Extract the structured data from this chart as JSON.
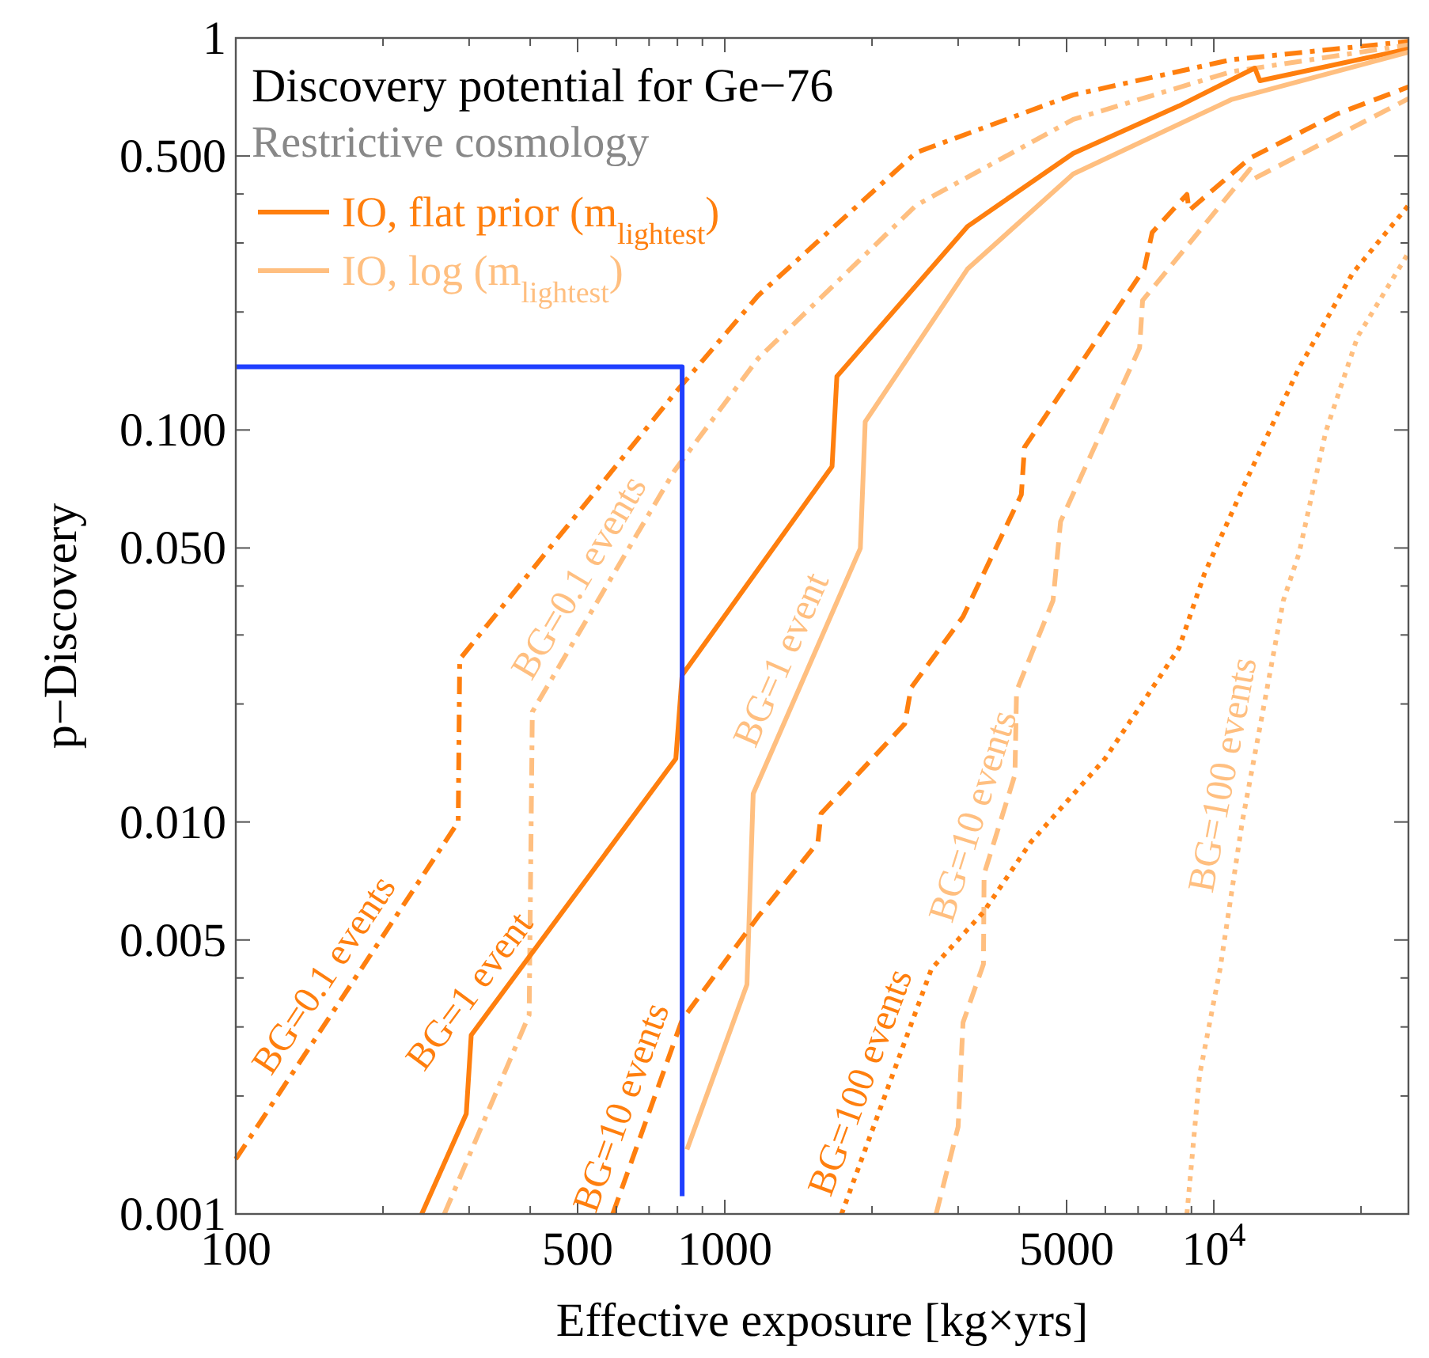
{
  "chart_data": {
    "type": "line",
    "title": "Discovery potential for Ge−76",
    "subtitle": "Restrictive cosmology",
    "xlabel": "Effective exposure [kg×yrs]",
    "ylabel": "p−Discovery",
    "log": "xy",
    "legend": "top left",
    "xlim": [
      100,
      25000
    ],
    "ylim": [
      0.001,
      1
    ],
    "xticks": [
      100,
      {
        "value": 200,
        "label": null
      },
      {
        "value": 300,
        "label": null
      },
      {
        "value": 400,
        "label": null
      },
      500,
      {
        "value": 600,
        "label": null
      },
      {
        "value": 700,
        "label": null
      },
      {
        "value": 800,
        "label": null
      },
      {
        "value": 900,
        "label": null
      },
      1000,
      {
        "value": 2000,
        "label": null
      },
      {
        "value": 3000,
        "label": null
      },
      {
        "value": 4000,
        "label": null
      },
      5000,
      {
        "value": 6000,
        "label": null
      },
      {
        "value": 7000,
        "label": null
      },
      {
        "value": 8000,
        "label": null
      },
      {
        "value": 9000,
        "label": null
      },
      {
        "value": 10000,
        "label": "10$^{4}$"
      },
      {
        "value": 20000,
        "label": null
      }
    ],
    "yticks": [
      {
        "value": 0.001,
        "label": "0.001"
      },
      {
        "value": 0.002,
        "label": null
      },
      {
        "value": 0.003,
        "label": null
      },
      {
        "value": 0.004,
        "label": null
      },
      {
        "value": 0.005,
        "label": "0.005"
      },
      {
        "value": 0.01,
        "label": "0.010"
      },
      {
        "value": 0.02,
        "label": null
      },
      {
        "value": 0.03,
        "label": null
      },
      {
        "value": 0.04,
        "label": null
      },
      {
        "value": 0.05,
        "label": "0.050"
      },
      {
        "value": 0.1,
        "label": "0.100"
      },
      {
        "value": 0.2,
        "label": null
      },
      {
        "value": 0.3,
        "label": null
      },
      {
        "value": 0.4,
        "label": null
      },
      {
        "value": 0.5,
        "label": "0.500"
      },
      {
        "value": 1,
        "label": "1"
      }
    ],
    "series": [
      {
        "color": "#ff7f0e",
        "line_style": "dashdot",
        "x": [
          100,
          285,
          287,
          794,
          1169,
          2460,
          5160,
          10850,
          25000
        ],
        "values": [
          0.00138,
          0.01,
          0.026,
          0.125,
          0.22,
          0.51,
          0.716,
          0.88,
          0.98
        ]
      },
      {
        "color": "#ffbf80",
        "line_style": "dashdot",
        "x": [
          267,
          398,
          404,
          788,
          1169,
          2460,
          5160,
          10850,
          25000
        ],
        "values": [
          0.001,
          0.00322,
          0.0191,
          0.0785,
          0.152,
          0.374,
          0.62,
          0.82,
          0.96
        ]
      },
      {
        "name": "IO, flat prior (m$_{lightest}$)",
        "color": "#ff7f0e",
        "line_style": "solid",
        "x": [
          240,
          296,
          303,
          794,
          818,
          1657,
          1695,
          3140,
          5160,
          8490,
          12130,
          12420,
          25000
        ],
        "values": [
          0.001,
          0.0018,
          0.00286,
          0.0145,
          0.0237,
          0.0807,
          0.137,
          0.331,
          0.508,
          0.671,
          0.838,
          0.778,
          0.937
        ]
      },
      {
        "name": "IO, log (m$_{lightest}$)",
        "color": "#ffbf80",
        "line_style": "solid",
        "x": [
          837,
          1110,
          1143,
          1893,
          1937,
          3140,
          5160,
          10850,
          25000
        ],
        "values": [
          0.00146,
          0.00385,
          0.0118,
          0.0499,
          0.105,
          0.258,
          0.45,
          0.696,
          0.92
        ]
      },
      {
        "color": "#ff7f0e",
        "line_style": "dashed",
        "x": [
          590,
          818,
          1169,
          1550,
          1573,
          2333,
          2404,
          3070,
          4040,
          4100,
          7210,
          7480,
          8810,
          8900,
          11860,
          17850,
          25000
        ],
        "values": [
          0.001,
          0.00313,
          0.00573,
          0.00887,
          0.0105,
          0.0178,
          0.022,
          0.0334,
          0.0684,
          0.0903,
          0.258,
          0.319,
          0.399,
          0.363,
          0.494,
          0.64,
          0.75
        ]
      },
      {
        "color": "#ffbf80",
        "line_style": "dashed",
        "x": [
          2705,
          3000,
          3070,
          3380,
          3390,
          3920,
          3950,
          4690,
          4860,
          7050,
          7150,
          11860,
          12100,
          25000
        ],
        "values": [
          0.001,
          0.00167,
          0.00308,
          0.00434,
          0.00736,
          0.0132,
          0.0216,
          0.0367,
          0.0584,
          0.162,
          0.214,
          0.463,
          0.438,
          0.7
        ]
      },
      {
        "color": "#ff7f0e",
        "line_style": "dotted",
        "x": [
          1733,
          2646,
          3380,
          4220,
          5990,
          6950,
          8490,
          9570,
          11690,
          14940,
          19220,
          25000
        ],
        "values": [
          0.001,
          0.00422,
          0.00589,
          0.00887,
          0.0145,
          0.0191,
          0.0278,
          0.043,
          0.075,
          0.144,
          0.251,
          0.374
        ]
      },
      {
        "color": "#ffbf80",
        "line_style": "dotted",
        "x": [
          8810,
          9350,
          10300,
          11430,
          12310,
          13870,
          14940,
          16940,
          19680,
          25000
        ],
        "values": [
          0.001,
          0.00226,
          0.00422,
          0.01,
          0.0164,
          0.0367,
          0.0485,
          0.099,
          0.173,
          0.283
        ]
      },
      {
        "color": "#1f3fff",
        "line_style": "solid",
        "x": [
          100,
          818,
          818
        ],
        "values": [
          0.145,
          0.145,
          0.00111
        ]
      }
    ],
    "annotations": [
      {
        "text": "BG=0.1 events",
        "x": 169,
        "y": 0.00372
      },
      {
        "text": "BG=0.1 events",
        "x": 564,
        "y": 0.0387
      },
      {
        "text": "BG=1 event",
        "x": 334,
        "y": 0.00336
      },
      {
        "text": "BG=1 event",
        "x": 1471,
        "y": 0.0243
      },
      {
        "text": "BG=10 events",
        "x": 695,
        "y": 0.00177
      },
      {
        "text": "BG=10 events",
        "x": 3645,
        "y": 0.00986
      },
      {
        "text": "BG=100 events",
        "x": 2141,
        "y": 0.00205
      },
      {
        "text": "BG=100 events",
        "x": 11862,
        "y": 0.0128
      }
    ]
  }
}
